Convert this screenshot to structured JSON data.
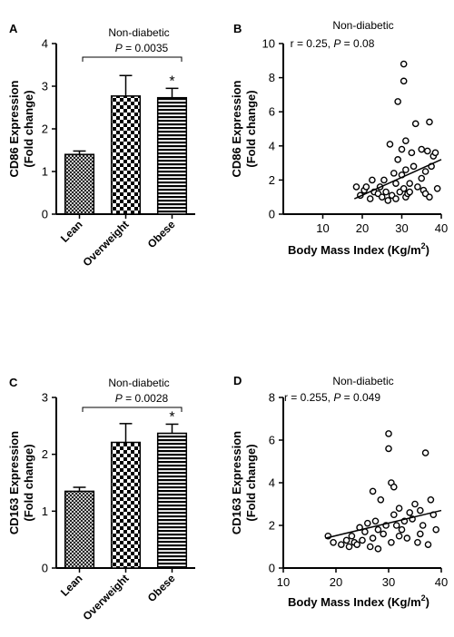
{
  "chart_data": [
    {
      "panel": "A",
      "type": "bar",
      "title": "Non-diabetic",
      "stat": "P = 0.0035",
      "ylabel": [
        "CD86 Expression",
        "(Fold change)"
      ],
      "categories": [
        "Lean",
        "Overweight",
        "Obese"
      ],
      "values": [
        1.4,
        2.77,
        2.73
      ],
      "errors": [
        0.08,
        0.48,
        0.22
      ],
      "patterns": [
        "crosshatch",
        "checker",
        "hstripes"
      ],
      "significance": [
        "",
        "",
        "*"
      ],
      "ylim": [
        0,
        4
      ],
      "yticks": [
        0,
        1,
        2,
        3,
        4
      ]
    },
    {
      "panel": "B",
      "type": "scatter",
      "title": "Non-diabetic",
      "stat": "r = 0.25, P = 0.08",
      "ylabel": [
        "CD86 Expression",
        "(Fold change)"
      ],
      "xlabel": "Body Mass Index (Kg/m",
      "xlabel_sup": "2",
      "xlabel_end": ")",
      "xlim": [
        0,
        40
      ],
      "ylim": [
        0,
        10
      ],
      "xticks": [
        10,
        20,
        30,
        40
      ],
      "yticks": [
        0,
        2,
        4,
        6,
        8,
        10
      ],
      "trend": {
        "x": [
          18,
          40
        ],
        "y": [
          0.9,
          3.2
        ]
      },
      "points": [
        [
          18.5,
          1.6
        ],
        [
          19.5,
          1.1
        ],
        [
          20.5,
          1.4
        ],
        [
          21,
          1.6
        ],
        [
          22,
          0.9
        ],
        [
          22.5,
          2.0
        ],
        [
          23,
          1.3
        ],
        [
          24,
          1.2
        ],
        [
          24.5,
          1.6
        ],
        [
          25,
          1.0
        ],
        [
          25.5,
          2.0
        ],
        [
          26,
          1.3
        ],
        [
          26.5,
          0.8
        ],
        [
          27,
          4.1
        ],
        [
          27.5,
          1.1
        ],
        [
          28,
          2.4
        ],
        [
          28.5,
          1.8
        ],
        [
          28.5,
          0.9
        ],
        [
          29,
          3.2
        ],
        [
          29,
          6.6
        ],
        [
          29.5,
          1.3
        ],
        [
          30,
          2.3
        ],
        [
          30,
          3.8
        ],
        [
          30.5,
          8.8
        ],
        [
          30.5,
          7.8
        ],
        [
          30.5,
          1.5
        ],
        [
          31,
          2.6
        ],
        [
          31,
          1.0
        ],
        [
          31,
          4.3
        ],
        [
          31.5,
          1.2
        ],
        [
          32,
          1.8
        ],
        [
          32,
          1.3
        ],
        [
          32.5,
          3.6
        ],
        [
          33,
          2.8
        ],
        [
          33.5,
          5.3
        ],
        [
          34,
          1.6
        ],
        [
          35,
          2.1
        ],
        [
          35,
          3.8
        ],
        [
          35.5,
          1.4
        ],
        [
          36,
          2.5
        ],
        [
          36,
          1.2
        ],
        [
          36.5,
          3.7
        ],
        [
          37,
          5.4
        ],
        [
          37,
          1.0
        ],
        [
          37.5,
          2.8
        ],
        [
          38,
          3.4
        ],
        [
          38.5,
          3.6
        ],
        [
          39,
          1.5
        ]
      ]
    },
    {
      "panel": "C",
      "type": "bar",
      "title": "Non-diabetic",
      "stat": "P = 0.0028",
      "ylabel": [
        "CD163 Expression",
        "(Fold change)"
      ],
      "categories": [
        "Lean",
        "Overweight",
        "Obese"
      ],
      "values": [
        1.35,
        2.21,
        2.37
      ],
      "errors": [
        0.07,
        0.33,
        0.16
      ],
      "patterns": [
        "crosshatch",
        "checker",
        "hstripes"
      ],
      "significance": [
        "",
        "",
        "*"
      ],
      "ylim": [
        0,
        3
      ],
      "yticks": [
        0,
        1,
        2,
        3
      ]
    },
    {
      "panel": "D",
      "type": "scatter",
      "title": "Non-diabetic",
      "stat": "r = 0.255, P = 0.049",
      "ylabel": [
        "CD163 Expression",
        "(Fold change)"
      ],
      "xlabel": "Body Mass Index (Kg/m",
      "xlabel_sup": "2",
      "xlabel_end": ")",
      "xlim": [
        10,
        40
      ],
      "ylim": [
        0,
        8
      ],
      "xticks": [
        10,
        20,
        30,
        40
      ],
      "yticks": [
        0,
        2,
        4,
        6,
        8
      ],
      "trend": {
        "x": [
          18,
          40
        ],
        "y": [
          1.4,
          2.7
        ]
      },
      "points": [
        [
          18.5,
          1.5
        ],
        [
          19.5,
          1.2
        ],
        [
          21,
          1.1
        ],
        [
          22,
          1.3
        ],
        [
          22.5,
          1.0
        ],
        [
          23,
          1.5
        ],
        [
          23.5,
          1.2
        ],
        [
          24,
          1.1
        ],
        [
          24.5,
          1.9
        ],
        [
          25,
          1.3
        ],
        [
          25.5,
          1.7
        ],
        [
          26,
          2.1
        ],
        [
          26.5,
          1.0
        ],
        [
          27,
          3.6
        ],
        [
          27,
          1.4
        ],
        [
          27.5,
          2.2
        ],
        [
          28,
          1.8
        ],
        [
          28,
          0.9
        ],
        [
          28.5,
          3.2
        ],
        [
          29,
          1.6
        ],
        [
          29.5,
          2.0
        ],
        [
          30,
          6.3
        ],
        [
          30,
          5.6
        ],
        [
          30.5,
          4.0
        ],
        [
          30.5,
          1.2
        ],
        [
          31,
          2.5
        ],
        [
          31,
          3.8
        ],
        [
          31.5,
          2.0
        ],
        [
          32,
          1.5
        ],
        [
          32,
          2.8
        ],
        [
          32.5,
          1.8
        ],
        [
          33,
          2.2
        ],
        [
          33.5,
          1.4
        ],
        [
          34,
          2.6
        ],
        [
          34.5,
          2.3
        ],
        [
          35,
          3.0
        ],
        [
          35.5,
          1.2
        ],
        [
          36,
          2.7
        ],
        [
          36,
          1.6
        ],
        [
          36.5,
          2.0
        ],
        [
          37,
          5.4
        ],
        [
          37.5,
          1.1
        ],
        [
          38,
          3.2
        ],
        [
          38.5,
          2.5
        ],
        [
          39,
          1.8
        ]
      ]
    }
  ]
}
